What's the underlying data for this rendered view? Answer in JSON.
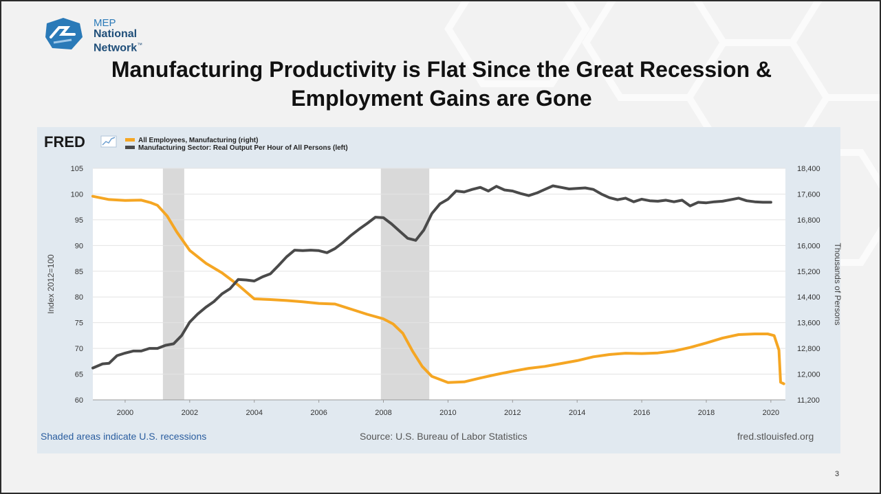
{
  "slide": {
    "logo": {
      "line1": "MEP",
      "line2": "National",
      "line3": "Network",
      "tm": "™"
    },
    "title": "Manufacturing Productivity is Flat Since the Great Recession & Employment Gains are Gone",
    "page_number": "3"
  },
  "fred": {
    "brand": "FRED",
    "footer_left": "Shaded areas indicate U.S. recessions",
    "footer_mid": "Source: U.S. Bureau of Labor Statistics",
    "footer_right": "fred.stlouisfed.org"
  },
  "chart_data": {
    "type": "line",
    "title": "",
    "ylabel_left": "Index 2012=100",
    "ylabel_right": "Thousands of Persons",
    "xlim": [
      1999.0,
      2020.45
    ],
    "ylim_left": [
      60,
      105
    ],
    "ylim_right": [
      11200,
      18400
    ],
    "x_ticks": [
      2000,
      2002,
      2004,
      2006,
      2008,
      2010,
      2012,
      2014,
      2016,
      2018,
      2020
    ],
    "y_ticks_left": [
      60,
      65,
      70,
      75,
      80,
      85,
      90,
      95,
      100,
      105
    ],
    "y_ticks_right": [
      11200,
      12000,
      12800,
      13600,
      14400,
      15200,
      16000,
      16800,
      17600,
      18400
    ],
    "y_tick_labels_right": [
      "11,200",
      "12,000",
      "12,800",
      "13,600",
      "14,400",
      "15,200",
      "16,000",
      "16,800",
      "17,600",
      "18,400"
    ],
    "grid": true,
    "legend_position": "top-left",
    "recessions": [
      [
        2001.17,
        2001.83
      ],
      [
        2007.92,
        2009.42
      ]
    ],
    "series": [
      {
        "name": "All Employees, Manufacturing (right)",
        "axis": "right",
        "color": "#f5a623",
        "x": [
          1999.0,
          1999.5,
          2000.0,
          2000.5,
          2000.8,
          2001.0,
          2001.3,
          2001.6,
          2002.0,
          2002.5,
          2003.0,
          2003.5,
          2004.0,
          2004.5,
          2005.0,
          2005.5,
          2006.0,
          2006.5,
          2007.0,
          2007.5,
          2008.0,
          2008.3,
          2008.6,
          2008.9,
          2009.2,
          2009.5,
          2010.0,
          2010.5,
          2011.0,
          2011.5,
          2012.0,
          2012.5,
          2013.0,
          2013.5,
          2014.0,
          2014.5,
          2015.0,
          2015.5,
          2016.0,
          2016.5,
          2017.0,
          2017.5,
          2018.0,
          2018.5,
          2019.0,
          2019.5,
          2019.9,
          2020.1,
          2020.25,
          2020.3,
          2020.4
        ],
        "y": [
          17530,
          17430,
          17400,
          17410,
          17330,
          17250,
          16920,
          16420,
          15850,
          15450,
          15150,
          14770,
          14340,
          14320,
          14290,
          14250,
          14200,
          14180,
          14020,
          13860,
          13720,
          13560,
          13270,
          12720,
          12240,
          11930,
          11740,
          11760,
          11880,
          11990,
          12090,
          12180,
          12240,
          12330,
          12420,
          12540,
          12610,
          12650,
          12640,
          12660,
          12720,
          12830,
          12970,
          13120,
          13230,
          13250,
          13250,
          13200,
          12750,
          11750,
          11700
        ]
      },
      {
        "name": "Manufacturing Sector: Real Output Per Hour of All Persons (left)",
        "axis": "left",
        "color": "#4a4a4a",
        "x": [
          1999.0,
          1999.3,
          1999.5,
          1999.75,
          2000.0,
          2000.25,
          2000.5,
          2000.75,
          2001.0,
          2001.25,
          2001.5,
          2001.75,
          2002.0,
          2002.25,
          2002.5,
          2002.75,
          2003.0,
          2003.25,
          2003.5,
          2003.75,
          2004.0,
          2004.25,
          2004.5,
          2004.75,
          2005.0,
          2005.25,
          2005.5,
          2005.75,
          2006.0,
          2006.25,
          2006.5,
          2006.75,
          2007.0,
          2007.25,
          2007.5,
          2007.75,
          2008.0,
          2008.25,
          2008.5,
          2008.75,
          2009.0,
          2009.25,
          2009.5,
          2009.75,
          2010.0,
          2010.25,
          2010.5,
          2010.75,
          2011.0,
          2011.25,
          2011.5,
          2011.75,
          2012.0,
          2012.25,
          2012.5,
          2012.75,
          2013.0,
          2013.25,
          2013.5,
          2013.75,
          2014.0,
          2014.25,
          2014.5,
          2014.75,
          2015.0,
          2015.25,
          2015.5,
          2015.75,
          2016.0,
          2016.25,
          2016.5,
          2016.75,
          2017.0,
          2017.25,
          2017.5,
          2017.75,
          2018.0,
          2018.25,
          2018.5,
          2018.75,
          2019.0,
          2019.25,
          2019.5,
          2019.75,
          2020.0
        ],
        "y": [
          66.2,
          67.0,
          67.1,
          68.6,
          69.1,
          69.5,
          69.5,
          70.0,
          70.0,
          70.6,
          70.9,
          72.5,
          75.1,
          76.7,
          78.0,
          79.1,
          80.6,
          81.6,
          83.4,
          83.3,
          83.1,
          83.9,
          84.5,
          86.1,
          87.8,
          89.1,
          89.0,
          89.1,
          89.0,
          88.6,
          89.4,
          90.6,
          92.0,
          93.2,
          94.3,
          95.5,
          95.4,
          94.2,
          92.8,
          91.4,
          91.0,
          93.0,
          96.2,
          98.1,
          99.0,
          100.6,
          100.4,
          100.9,
          101.3,
          100.6,
          101.5,
          100.8,
          100.6,
          100.1,
          99.7,
          100.2,
          100.9,
          101.6,
          101.3,
          101.0,
          101.1,
          101.2,
          100.9,
          100.0,
          99.3,
          98.9,
          99.2,
          98.5,
          99.0,
          98.7,
          98.6,
          98.8,
          98.5,
          98.8,
          97.7,
          98.4,
          98.3,
          98.5,
          98.6,
          98.9,
          99.2,
          98.7,
          98.5,
          98.4,
          98.4
        ]
      }
    ]
  },
  "colors": {
    "employees_line": "#f5a623",
    "productivity_line": "#4a4a4a",
    "recession_shade": "#d9d9d9",
    "panel_bg": "#e1e9f0",
    "plot_bg": "#ffffff"
  }
}
